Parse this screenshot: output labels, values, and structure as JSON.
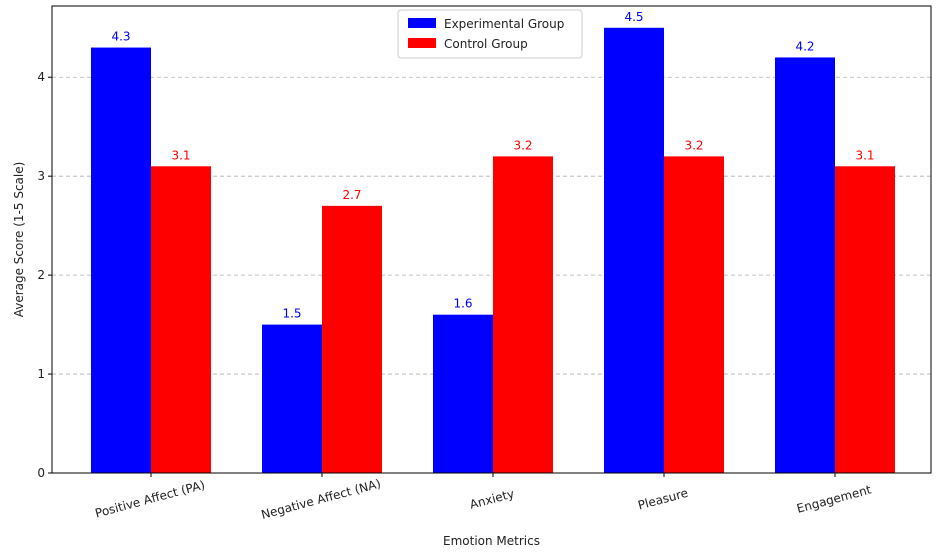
{
  "chart_data": {
    "type": "bar",
    "title": "",
    "xlabel": "Emotion Metrics",
    "ylabel": "Average Score (1-5 Scale)",
    "ylim": [
      0,
      4.72
    ],
    "yticks": [
      0,
      1,
      2,
      3,
      4
    ],
    "grid": "horizontal dashed",
    "legend_position": "top-center",
    "categories": [
      "Positive Affect (PA)",
      "Negative Affect (NA)",
      "Anxiety",
      "Pleasure",
      "Engagement"
    ],
    "series": [
      {
        "name": "Experimental Group",
        "color": "#0000ff",
        "values": [
          4.3,
          1.5,
          1.6,
          4.5,
          4.2
        ],
        "labels": [
          "4.3",
          "1.5",
          "1.6",
          "4.5",
          "4.2"
        ]
      },
      {
        "name": "Control Group",
        "color": "#ff0000",
        "values": [
          3.1,
          2.7,
          3.2,
          3.2,
          3.1
        ],
        "labels": [
          "3.1",
          "2.7",
          "3.2",
          "3.2",
          "3.1"
        ]
      }
    ]
  }
}
